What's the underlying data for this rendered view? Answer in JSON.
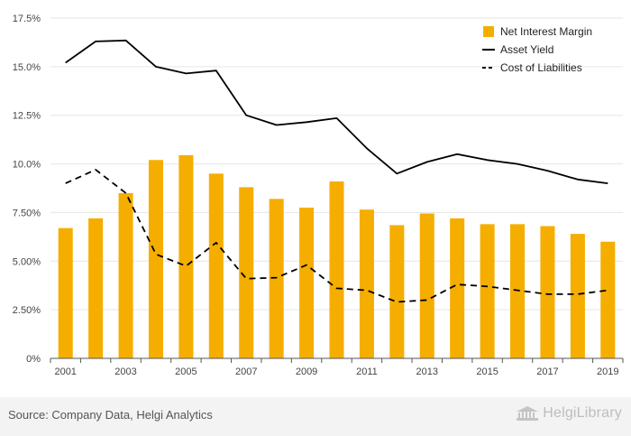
{
  "chart_data": {
    "type": "bar",
    "categories": [
      "2001",
      "2002",
      "2003",
      "2004",
      "2005",
      "2006",
      "2007",
      "2008",
      "2009",
      "2010",
      "2011",
      "2012",
      "2013",
      "2014",
      "2015",
      "2016",
      "2017",
      "2018",
      "2019"
    ],
    "x_tick_labels": [
      "2001",
      "2003",
      "2005",
      "2007",
      "2009",
      "2011",
      "2013",
      "2015",
      "2017",
      "2019"
    ],
    "y_tick_labels": [
      "0%",
      "2.50%",
      "5.00%",
      "7.50%",
      "10.0%",
      "12.5%",
      "15.0%",
      "17.5%"
    ],
    "ylim": [
      0,
      17.5
    ],
    "y_unit": "%",
    "grid": true,
    "legend_position": "top-right",
    "series": [
      {
        "name": "Net Interest Margin",
        "type": "bar",
        "color": "#f5ae00",
        "values": [
          6.7,
          7.2,
          8.5,
          10.2,
          10.45,
          9.5,
          8.8,
          8.2,
          7.75,
          9.1,
          7.65,
          6.85,
          7.45,
          7.2,
          6.9,
          6.9,
          6.8,
          6.4,
          6.0
        ]
      },
      {
        "name": "Asset Yield",
        "type": "line",
        "style": "solid",
        "color": "#000000",
        "values": [
          15.2,
          16.3,
          16.35,
          15.0,
          14.65,
          14.8,
          12.5,
          12.0,
          12.15,
          12.35,
          10.8,
          9.5,
          10.1,
          10.5,
          10.2,
          10.0,
          9.65,
          9.2,
          9.0
        ]
      },
      {
        "name": "Cost of Liabilities",
        "type": "line",
        "style": "dashed",
        "color": "#000000",
        "values": [
          9.0,
          9.7,
          8.5,
          5.35,
          4.75,
          5.95,
          4.1,
          4.15,
          4.8,
          3.6,
          3.5,
          2.9,
          3.0,
          3.8,
          3.7,
          3.5,
          3.3,
          3.3,
          3.5
        ]
      }
    ]
  },
  "footer": {
    "source": "Source: Company Data, Helgi Analytics",
    "logo_text": "HelgiLibrary"
  }
}
